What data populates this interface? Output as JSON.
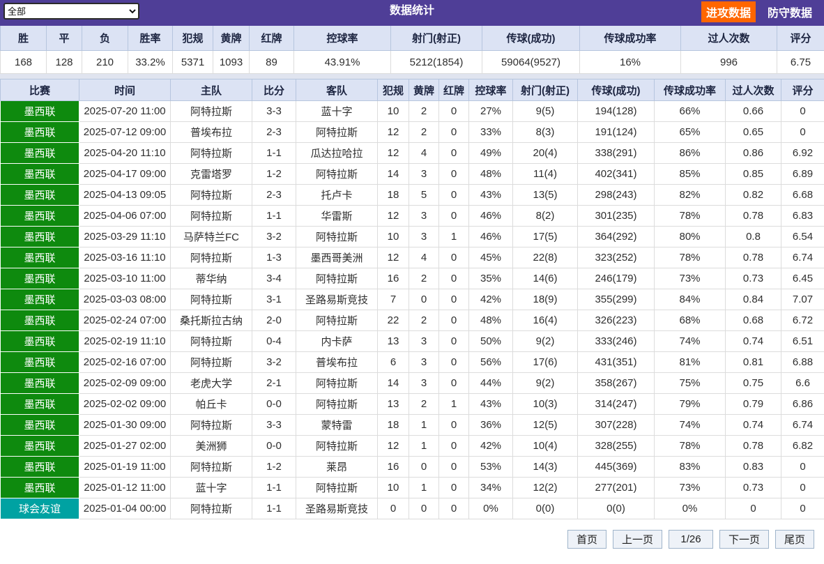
{
  "topbar": {
    "filter_value": "全部",
    "title": "数据统计",
    "attack_tab": "进攻数据",
    "defense_tab": "防守数据"
  },
  "colors": {
    "topbar_bg": "#4f3e97",
    "accent_orange": "#ff6600",
    "header_row_bg": "#dce3f4",
    "header_text": "#1c2440",
    "league_green": "#0e8a0e",
    "league_teal": "#00a2a2"
  },
  "summary": {
    "headers": [
      "胜",
      "平",
      "负",
      "胜率",
      "犯规",
      "黄牌",
      "红牌",
      "控球率",
      "射门(射正)",
      "传球(成功)",
      "传球成功率",
      "过人次数",
      "评分"
    ],
    "values": [
      "168",
      "128",
      "210",
      "33.2%",
      "5371",
      "1093",
      "89",
      "43.91%",
      "5212(1854)",
      "59064(9527)",
      "16%",
      "996",
      "6.75"
    ]
  },
  "table": {
    "headers": [
      "比赛",
      "时间",
      "主队",
      "比分",
      "客队",
      "犯规",
      "黄牌",
      "红牌",
      "控球率",
      "射门(射正)",
      "传球(成功)",
      "传球成功率",
      "过人次数",
      "评分"
    ],
    "league_colors": {
      "墨西联": "#0e8a0e",
      "球会友谊": "#00a2a2"
    },
    "rows": [
      [
        "墨西联",
        "2025-07-20 11:00",
        "阿特拉斯",
        "3-3",
        "蓝十字",
        "10",
        "2",
        "0",
        "27%",
        "9(5)",
        "194(128)",
        "66%",
        "0.66",
        "0"
      ],
      [
        "墨西联",
        "2025-07-12 09:00",
        "普埃布拉",
        "2-3",
        "阿特拉斯",
        "12",
        "2",
        "0",
        "33%",
        "8(3)",
        "191(124)",
        "65%",
        "0.65",
        "0"
      ],
      [
        "墨西联",
        "2025-04-20 11:10",
        "阿特拉斯",
        "1-1",
        "瓜达拉哈拉",
        "12",
        "4",
        "0",
        "49%",
        "20(4)",
        "338(291)",
        "86%",
        "0.86",
        "6.92"
      ],
      [
        "墨西联",
        "2025-04-17 09:00",
        "克雷塔罗",
        "1-2",
        "阿特拉斯",
        "14",
        "3",
        "0",
        "48%",
        "11(4)",
        "402(341)",
        "85%",
        "0.85",
        "6.89"
      ],
      [
        "墨西联",
        "2025-04-13 09:05",
        "阿特拉斯",
        "2-3",
        "托卢卡",
        "18",
        "5",
        "0",
        "43%",
        "13(5)",
        "298(243)",
        "82%",
        "0.82",
        "6.68"
      ],
      [
        "墨西联",
        "2025-04-06 07:00",
        "阿特拉斯",
        "1-1",
        "华雷斯",
        "12",
        "3",
        "0",
        "46%",
        "8(2)",
        "301(235)",
        "78%",
        "0.78",
        "6.83"
      ],
      [
        "墨西联",
        "2025-03-29 11:10",
        "马萨特兰FC",
        "3-2",
        "阿特拉斯",
        "10",
        "3",
        "1",
        "46%",
        "17(5)",
        "364(292)",
        "80%",
        "0.8",
        "6.54"
      ],
      [
        "墨西联",
        "2025-03-16 11:10",
        "阿特拉斯",
        "1-3",
        "墨西哥美洲",
        "12",
        "4",
        "0",
        "45%",
        "22(8)",
        "323(252)",
        "78%",
        "0.78",
        "6.74"
      ],
      [
        "墨西联",
        "2025-03-10 11:00",
        "蒂华纳",
        "3-4",
        "阿特拉斯",
        "16",
        "2",
        "0",
        "35%",
        "14(6)",
        "246(179)",
        "73%",
        "0.73",
        "6.45"
      ],
      [
        "墨西联",
        "2025-03-03 08:00",
        "阿特拉斯",
        "3-1",
        "圣路易斯竞技",
        "7",
        "0",
        "0",
        "42%",
        "18(9)",
        "355(299)",
        "84%",
        "0.84",
        "7.07"
      ],
      [
        "墨西联",
        "2025-02-24 07:00",
        "桑托斯拉古纳",
        "2-0",
        "阿特拉斯",
        "22",
        "2",
        "0",
        "48%",
        "16(4)",
        "326(223)",
        "68%",
        "0.68",
        "6.72"
      ],
      [
        "墨西联",
        "2025-02-19 11:10",
        "阿特拉斯",
        "0-4",
        "内卡萨",
        "13",
        "3",
        "0",
        "50%",
        "9(2)",
        "333(246)",
        "74%",
        "0.74",
        "6.51"
      ],
      [
        "墨西联",
        "2025-02-16 07:00",
        "阿特拉斯",
        "3-2",
        "普埃布拉",
        "6",
        "3",
        "0",
        "56%",
        "17(6)",
        "431(351)",
        "81%",
        "0.81",
        "6.88"
      ],
      [
        "墨西联",
        "2025-02-09 09:00",
        "老虎大学",
        "2-1",
        "阿特拉斯",
        "14",
        "3",
        "0",
        "44%",
        "9(2)",
        "358(267)",
        "75%",
        "0.75",
        "6.6"
      ],
      [
        "墨西联",
        "2025-02-02 09:00",
        "帕丘卡",
        "0-0",
        "阿特拉斯",
        "13",
        "2",
        "1",
        "43%",
        "10(3)",
        "314(247)",
        "79%",
        "0.79",
        "6.86"
      ],
      [
        "墨西联",
        "2025-01-30 09:00",
        "阿特拉斯",
        "3-3",
        "蒙特雷",
        "18",
        "1",
        "0",
        "36%",
        "12(5)",
        "307(228)",
        "74%",
        "0.74",
        "6.74"
      ],
      [
        "墨西联",
        "2025-01-27 02:00",
        "美洲狮",
        "0-0",
        "阿特拉斯",
        "12",
        "1",
        "0",
        "42%",
        "10(4)",
        "328(255)",
        "78%",
        "0.78",
        "6.82"
      ],
      [
        "墨西联",
        "2025-01-19 11:00",
        "阿特拉斯",
        "1-2",
        "莱昂",
        "16",
        "0",
        "0",
        "53%",
        "14(3)",
        "445(369)",
        "83%",
        "0.83",
        "0"
      ],
      [
        "墨西联",
        "2025-01-12 11:00",
        "蓝十字",
        "1-1",
        "阿特拉斯",
        "10",
        "1",
        "0",
        "34%",
        "12(2)",
        "277(201)",
        "73%",
        "0.73",
        "0"
      ],
      [
        "球会友谊",
        "2025-01-04 00:00",
        "阿特拉斯",
        "1-1",
        "圣路易斯竞技",
        "0",
        "0",
        "0",
        "0%",
        "0(0)",
        "0(0)",
        "0%",
        "0",
        "0"
      ]
    ]
  },
  "pagination": {
    "first": "首页",
    "prev": "上一页",
    "page_indicator": "1/26",
    "next": "下一页",
    "last": "尾页"
  }
}
